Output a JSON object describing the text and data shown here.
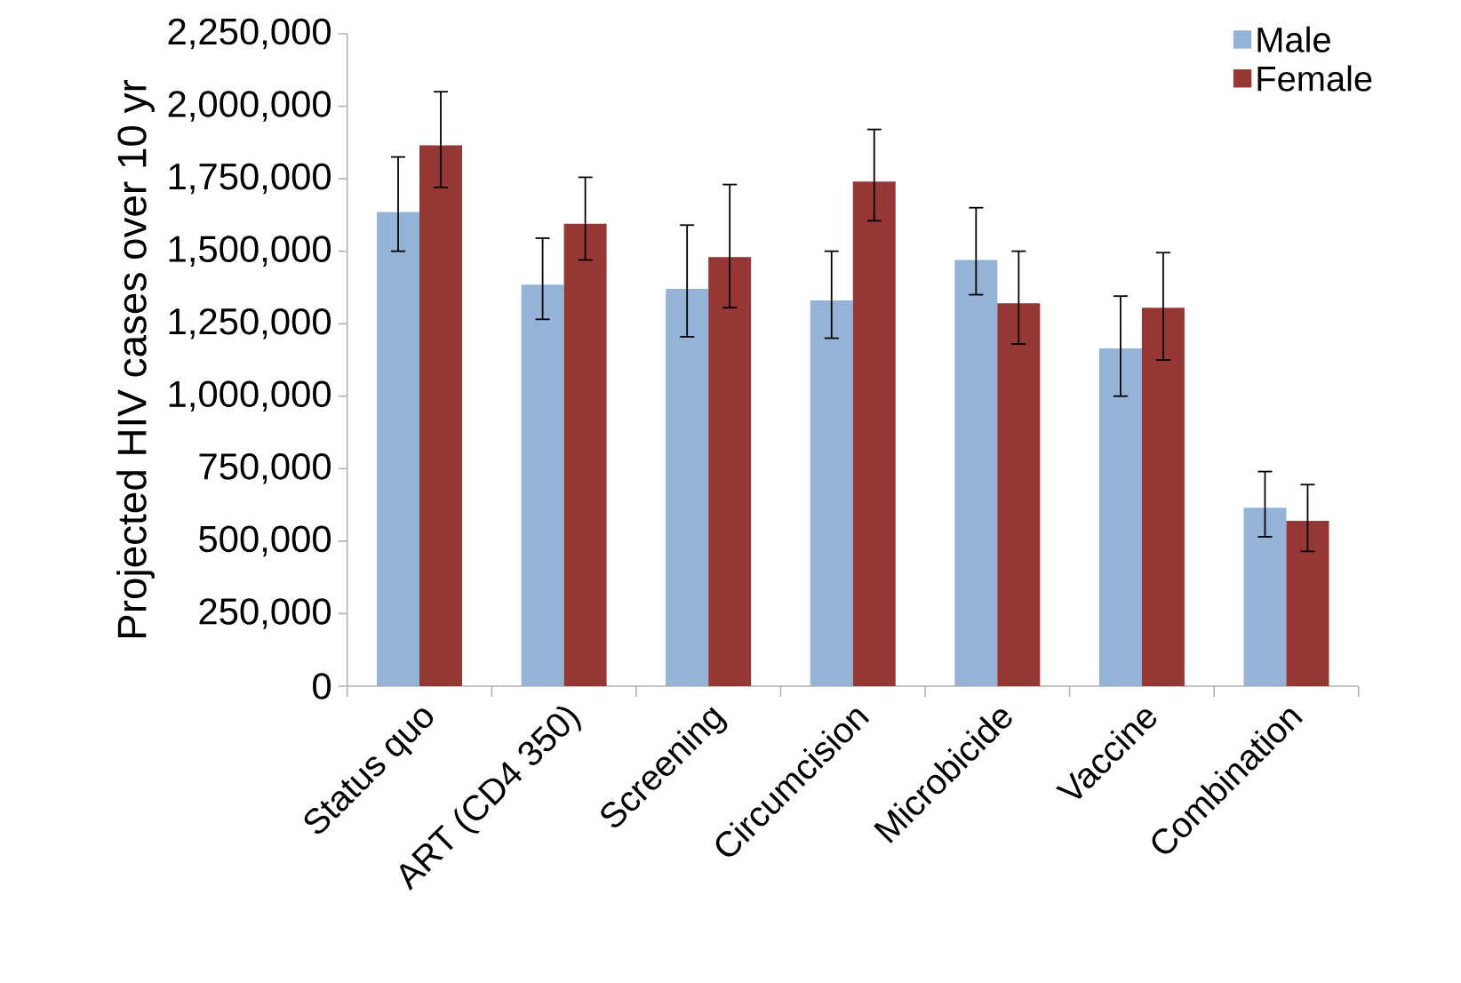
{
  "chart_data": {
    "type": "bar",
    "ylabel": "Projected HIV cases over 10 yr",
    "categories": [
      "Status quo",
      "ART (CD4 350)",
      "Screening",
      "Circumcision",
      "Microbicide",
      "Vaccine",
      "Combination"
    ],
    "series": [
      {
        "name": "Male",
        "color": "#95b3d7",
        "values": [
          1635000,
          1385000,
          1370000,
          1330000,
          1470000,
          1165000,
          615000
        ],
        "errors": [
          [
            1500000,
            1825000
          ],
          [
            1265000,
            1545000
          ],
          [
            1205000,
            1590000
          ],
          [
            1200000,
            1500000
          ],
          [
            1350000,
            1650000
          ],
          [
            1000000,
            1345000
          ],
          [
            515000,
            740000
          ]
        ]
      },
      {
        "name": "Female",
        "color": "#953735",
        "values": [
          1865000,
          1595000,
          1480000,
          1740000,
          1320000,
          1305000,
          570000
        ],
        "errors": [
          [
            1720000,
            2050000
          ],
          [
            1470000,
            1755000
          ],
          [
            1305000,
            1730000
          ],
          [
            1605000,
            1920000
          ],
          [
            1180000,
            1500000
          ],
          [
            1125000,
            1495000
          ],
          [
            465000,
            695000
          ]
        ]
      }
    ],
    "ylim": [
      0,
      2250000
    ],
    "yticks": [
      0,
      {
        "value": 250000,
        "label": "250,000"
      },
      {
        "value": 500000,
        "label": "500,000"
      },
      {
        "value": 750000,
        "label": "750,000"
      },
      {
        "value": 1000000,
        "label": "1,000,000"
      },
      {
        "value": 1250000,
        "label": "1,250,000"
      },
      {
        "value": 1500000,
        "label": "1,500,000"
      },
      {
        "value": 1750000,
        "label": "1,750,000"
      },
      {
        "value": 2000000,
        "label": "2,000,000"
      },
      {
        "value": 2250000,
        "label": "2,250,000"
      }
    ],
    "legend": "top right",
    "grid": false
  }
}
